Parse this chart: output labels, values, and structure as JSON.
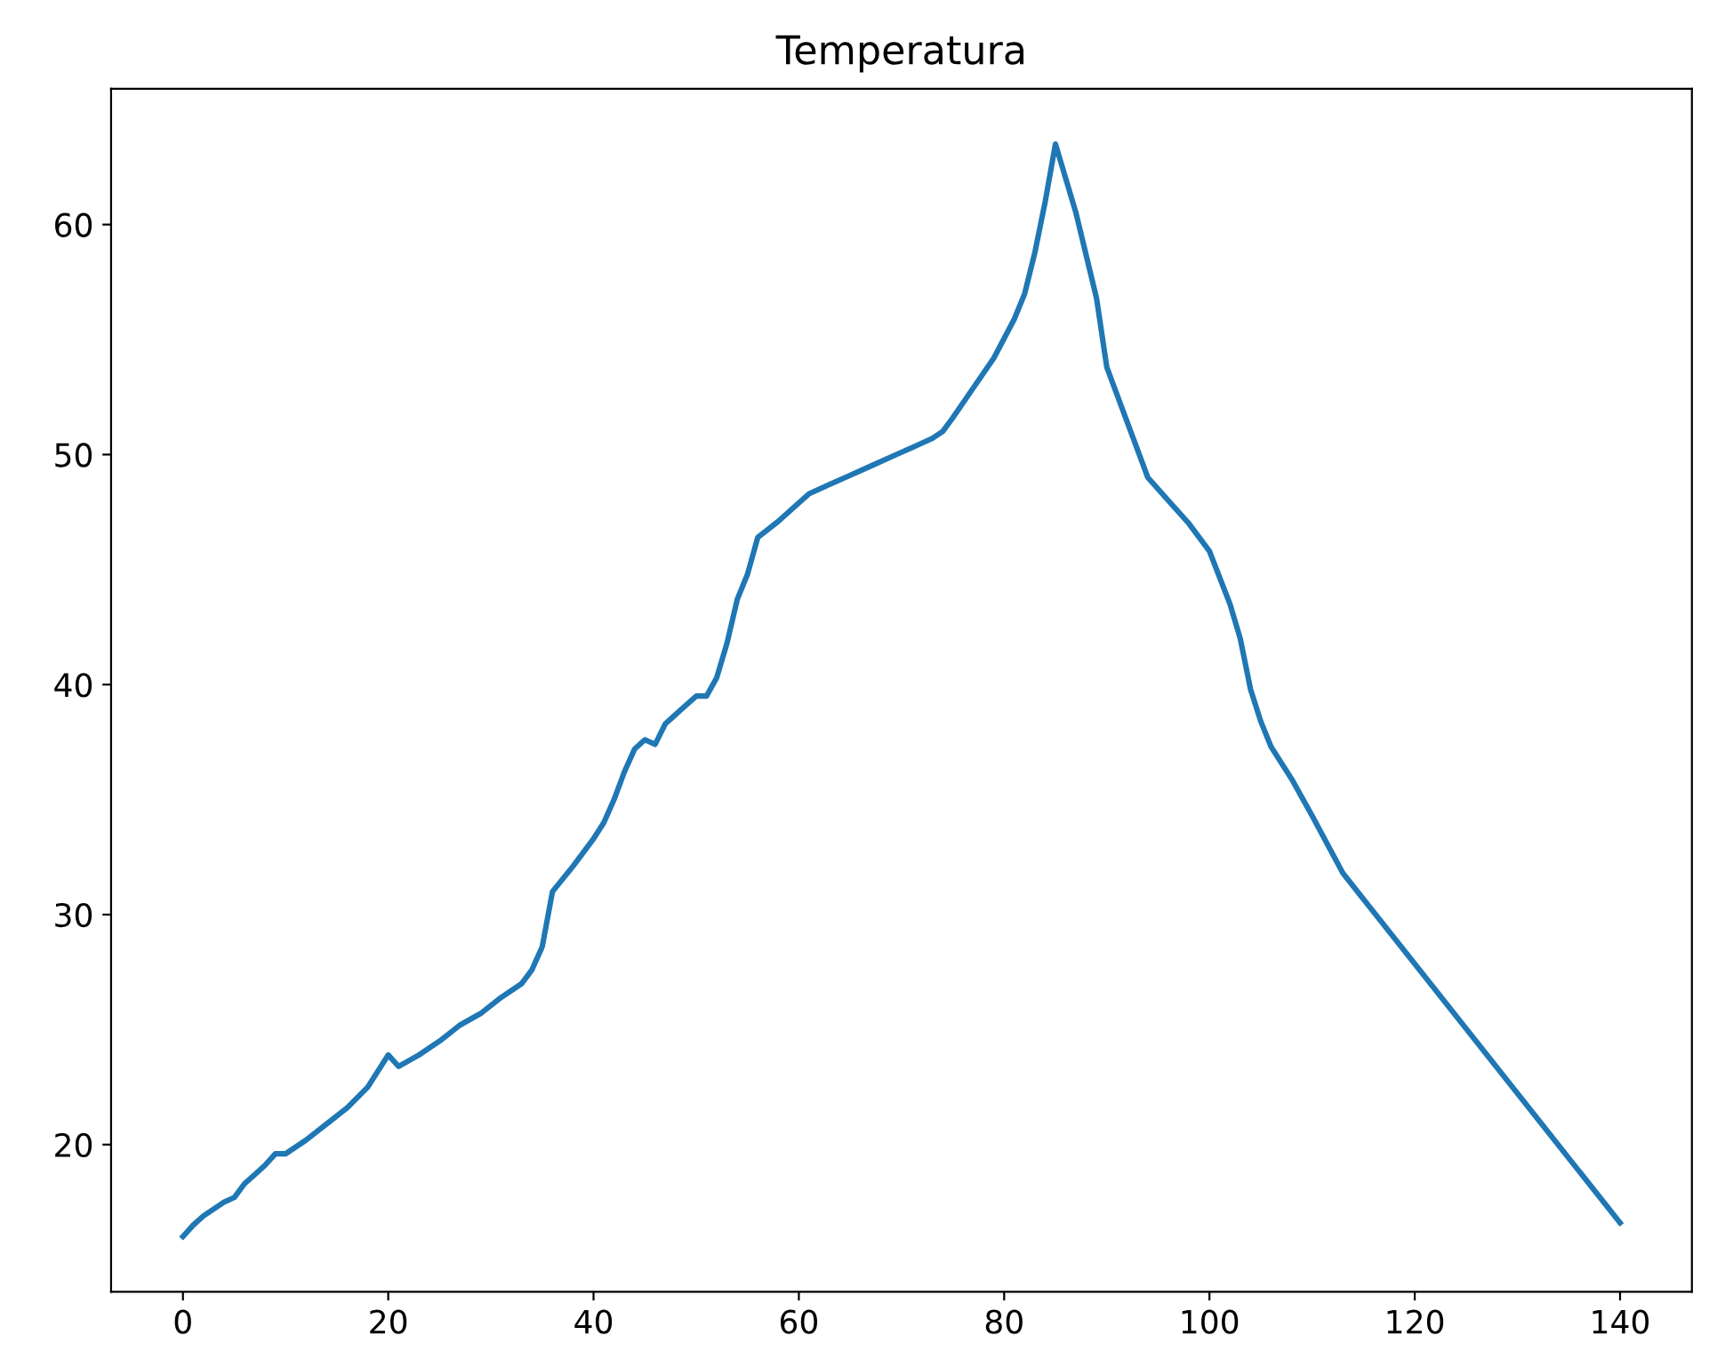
{
  "chart_data": {
    "type": "line",
    "title": "Temperatura",
    "x": [
      0,
      1,
      2,
      3,
      4,
      5,
      6,
      7,
      8,
      9,
      10,
      12,
      14,
      16,
      18,
      20,
      21,
      23,
      25,
      27,
      29,
      31,
      33,
      34,
      35,
      36,
      38,
      40,
      41,
      42,
      43,
      44,
      45,
      46,
      47,
      48,
      50,
      51,
      52,
      53,
      54,
      55,
      56,
      58,
      60,
      61,
      63,
      65,
      67,
      69,
      71,
      73,
      74,
      75,
      77,
      79,
      81,
      82,
      83,
      84,
      85,
      87,
      89,
      90,
      92,
      94,
      96,
      98,
      100,
      102,
      103,
      104,
      105,
      106,
      108,
      110,
      113,
      140
    ],
    "series": [
      {
        "color": "#1f77b4",
        "values": [
          16.0,
          16.5,
          16.9,
          17.2,
          17.5,
          17.7,
          18.3,
          18.7,
          19.1,
          19.6,
          19.6,
          20.2,
          20.9,
          21.6,
          22.5,
          23.9,
          23.4,
          23.9,
          24.5,
          25.2,
          25.7,
          26.4,
          27.0,
          27.6,
          28.6,
          31.0,
          32.1,
          33.3,
          34.0,
          35.0,
          36.2,
          37.2,
          37.6,
          37.4,
          38.3,
          38.7,
          39.5,
          39.5,
          40.3,
          41.8,
          43.7,
          44.8,
          46.4,
          47.1,
          47.9,
          48.3,
          48.7,
          49.1,
          49.5,
          49.9,
          50.3,
          50.7,
          51.0,
          51.6,
          52.9,
          54.2,
          55.9,
          57.0,
          58.8,
          61.0,
          63.5,
          60.5,
          56.8,
          53.8,
          51.4,
          49.0,
          48.0,
          47.0,
          45.8,
          43.5,
          42.0,
          39.8,
          38.4,
          37.3,
          35.9,
          34.3,
          31.8,
          16.6
        ]
      }
    ],
    "xlim": [
      -7,
      147
    ],
    "ylim": [
      13.6,
      65.9
    ],
    "xticks": [
      0,
      20,
      40,
      60,
      80,
      100,
      120,
      140
    ],
    "yticks": [
      20,
      30,
      40,
      50,
      60
    ],
    "grid": false,
    "legend": false
  }
}
